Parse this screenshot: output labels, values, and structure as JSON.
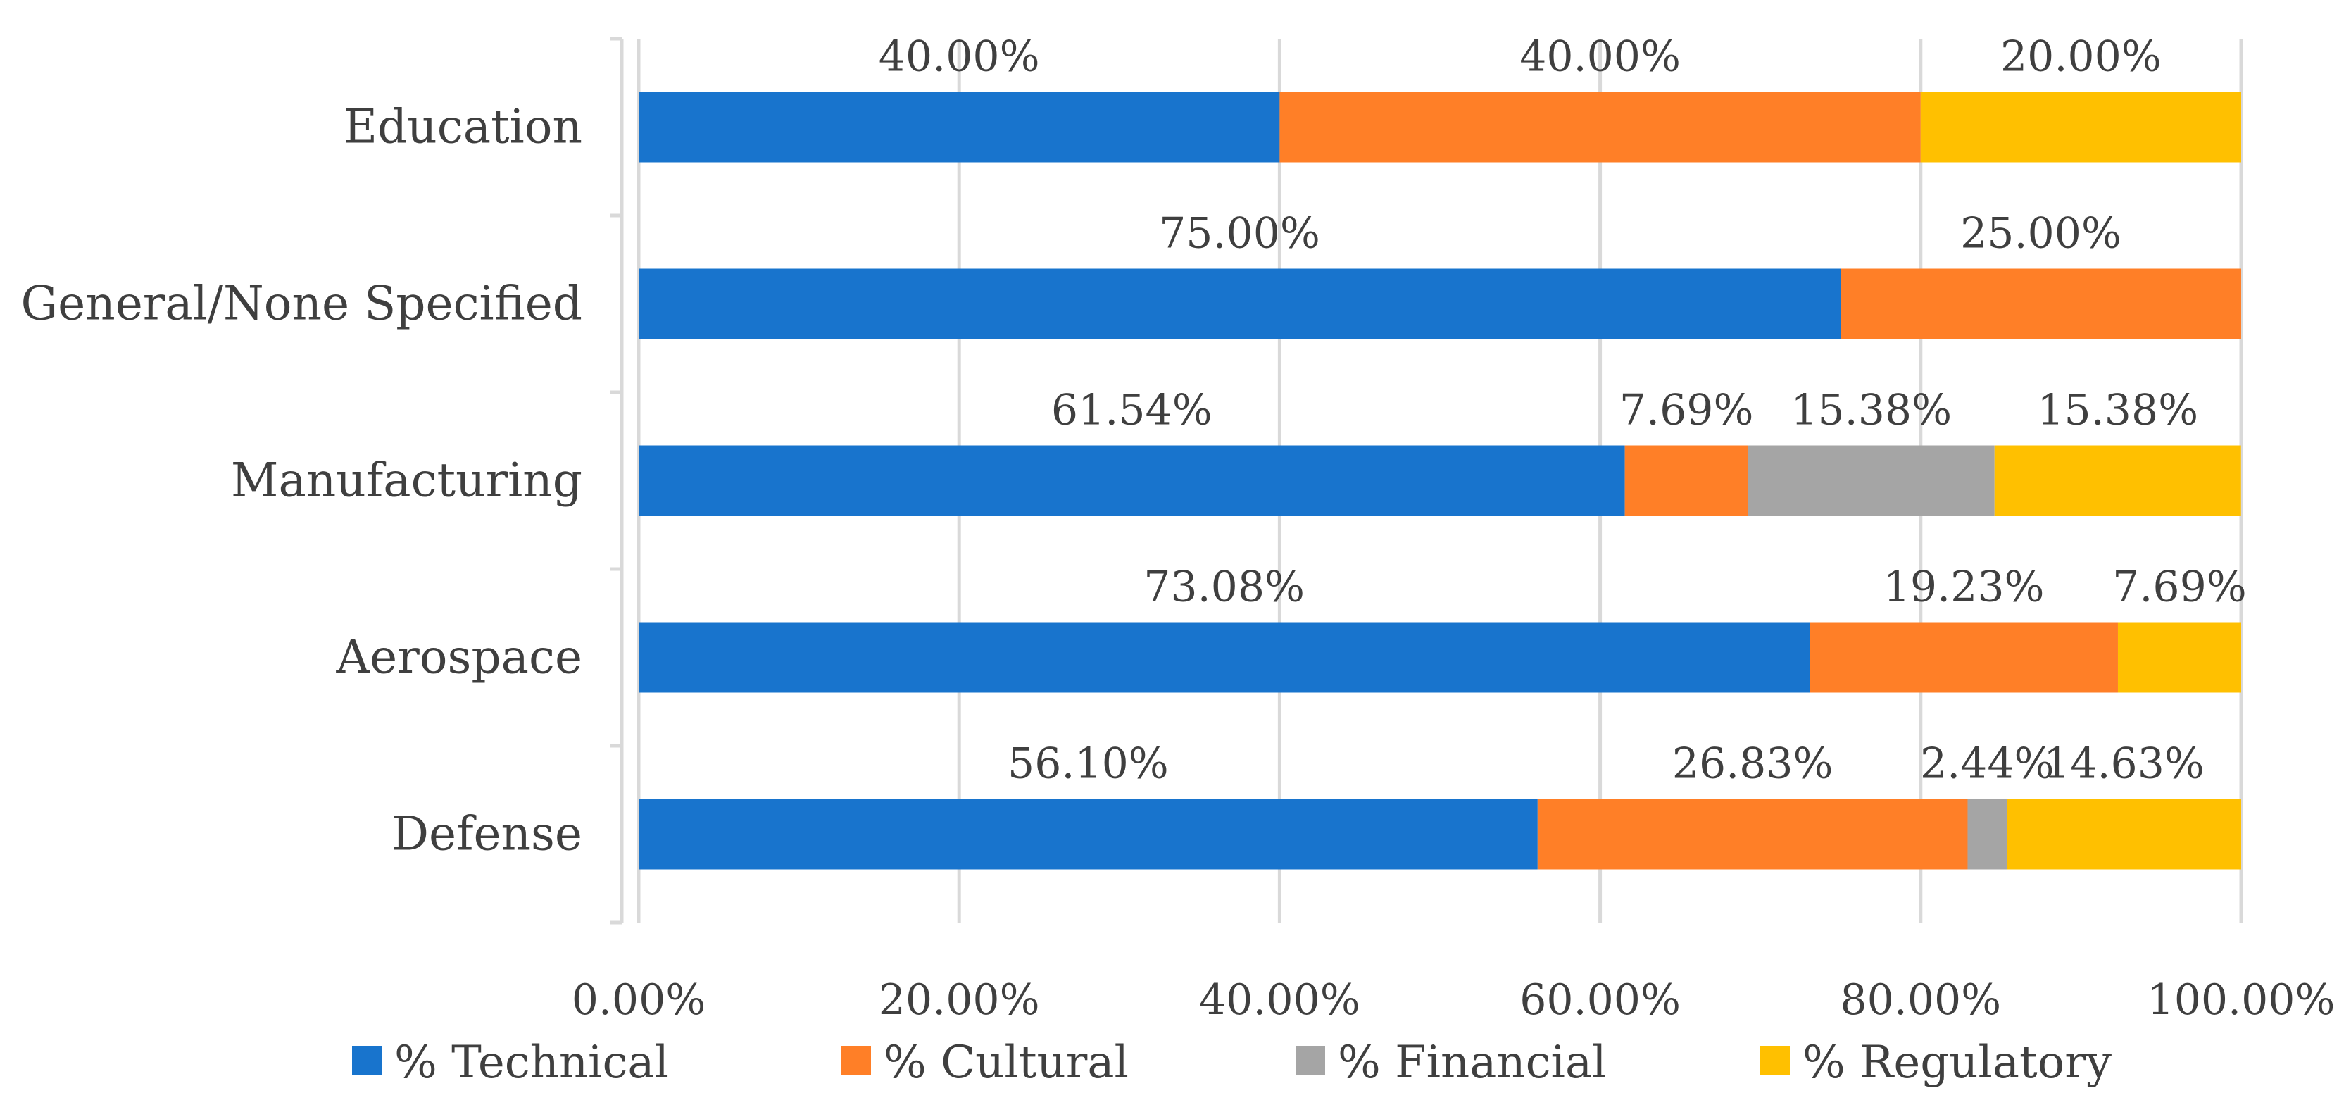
{
  "chart_data": {
    "type": "bar",
    "orientation": "horizontal",
    "stacked": "percent",
    "title": "",
    "xlabel": "",
    "ylabel": "",
    "xlim": [
      0,
      100
    ],
    "x_ticks": [
      "0.00%",
      "20.00%",
      "40.00%",
      "60.00%",
      "80.00%",
      "100.00%"
    ],
    "grid": true,
    "legend_position": "bottom",
    "categories": [
      "Education",
      "General/None Specified",
      "Manufacturing",
      "Aerospace",
      "Defense"
    ],
    "series": [
      {
        "name": "% Technical",
        "color": "#1874CD",
        "values": [
          40.0,
          75.0,
          61.54,
          73.08,
          56.1
        ],
        "labels": [
          "40.00%",
          "75.00%",
          "61.54%",
          "73.08%",
          "56.10%"
        ]
      },
      {
        "name": "% Cultural",
        "color": "#FF7F27",
        "values": [
          40.0,
          25.0,
          7.69,
          19.23,
          26.83
        ],
        "labels": [
          "40.00%",
          "25.00%",
          "7.69%",
          "19.23%",
          "26.83%"
        ]
      },
      {
        "name": "% Financial",
        "color": "#A5A5A5",
        "values": [
          0,
          0,
          15.38,
          0,
          2.44
        ],
        "labels": [
          null,
          null,
          "15.38%",
          null,
          "2.44%"
        ]
      },
      {
        "name": "% Regulatory",
        "color": "#FFC000",
        "values": [
          20.0,
          0,
          15.38,
          7.69,
          14.63
        ],
        "labels": [
          "20.00%",
          null,
          "15.38%",
          "7.69%",
          "14.63%"
        ]
      }
    ]
  }
}
